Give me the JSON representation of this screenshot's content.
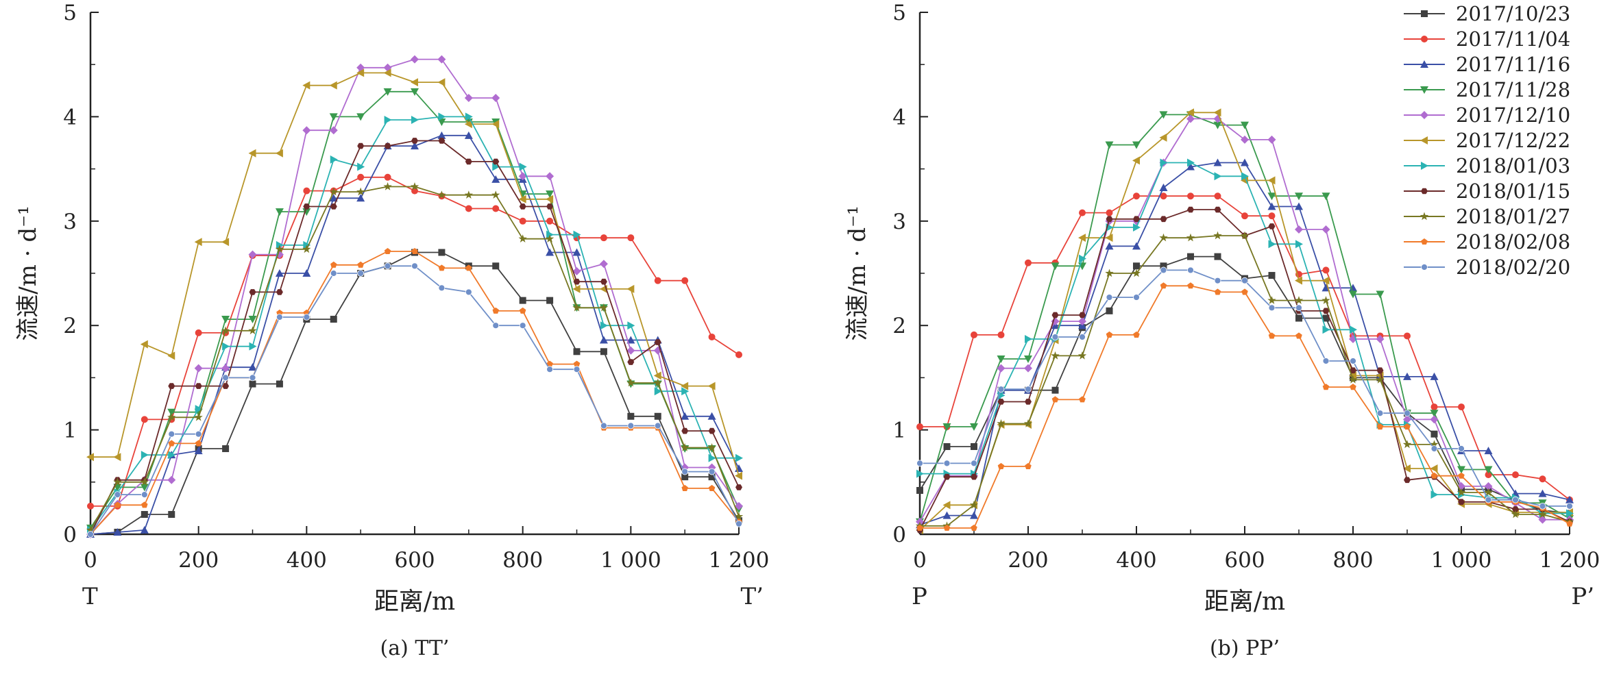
{
  "chart_data": [
    {
      "type": "line",
      "panel_label": "(a) TT’",
      "xlabel": "距离/m",
      "ylabel": "流速/m · d⁻¹",
      "xlim": [
        0,
        1200
      ],
      "ylim": [
        0,
        5
      ],
      "x_ticks": [
        0,
        200,
        400,
        600,
        800,
        1000,
        1200
      ],
      "x_tick_labels": [
        "0",
        "200",
        "400",
        "600",
        "800",
        "1 000",
        "1 200"
      ],
      "y_ticks": [
        0,
        1,
        2,
        3,
        4,
        5
      ],
      "y_tick_labels": [
        "0",
        "1",
        "2",
        "3",
        "4",
        "5"
      ],
      "end_labels": [
        "T",
        "T’"
      ],
      "grid": false,
      "legend": false,
      "x": [
        0,
        50,
        100,
        150,
        200,
        250,
        300,
        350,
        400,
        450,
        500,
        550,
        600,
        650,
        700,
        750,
        800,
        850,
        900,
        950,
        1000,
        1050,
        1100,
        1150,
        1200
      ],
      "series": [
        {
          "name": "2017/10/23",
          "color": "#404040",
          "marker": "square",
          "values": [
            0.0,
            0.02,
            0.19,
            0.19,
            0.82,
            0.82,
            1.44,
            1.44,
            2.06,
            2.06,
            2.5,
            2.57,
            2.7,
            2.7,
            2.57,
            2.57,
            2.24,
            2.24,
            1.75,
            1.75,
            1.13,
            1.13,
            0.55,
            0.55,
            0.13
          ]
        },
        {
          "name": "2017/11/04",
          "color": "#e8433a",
          "marker": "circle",
          "values": [
            0.27,
            0.27,
            1.1,
            1.1,
            1.93,
            1.93,
            2.67,
            2.67,
            3.29,
            3.29,
            3.42,
            3.42,
            3.29,
            3.24,
            3.12,
            3.12,
            3.0,
            3.0,
            2.84,
            2.84,
            2.84,
            2.43,
            2.43,
            1.89,
            1.72
          ]
        },
        {
          "name": "2017/11/16",
          "color": "#3a4fa6",
          "marker": "triangle-up",
          "values": [
            0.0,
            0.02,
            0.04,
            0.76,
            0.8,
            1.6,
            1.6,
            2.5,
            2.5,
            3.22,
            3.22,
            3.72,
            3.72,
            3.82,
            3.82,
            3.4,
            3.4,
            2.7,
            2.7,
            1.86,
            1.86,
            1.86,
            1.13,
            1.13,
            0.63
          ]
        },
        {
          "name": "2017/11/28",
          "color": "#3a9a4e",
          "marker": "triangle-down",
          "values": [
            0.06,
            0.45,
            0.45,
            1.17,
            1.17,
            2.06,
            2.06,
            3.09,
            3.09,
            4.0,
            4.0,
            4.24,
            4.24,
            3.95,
            3.95,
            3.95,
            3.26,
            3.26,
            2.17,
            2.17,
            1.44,
            1.44,
            0.82,
            0.82,
            0.24
          ]
        },
        {
          "name": "2017/12/10",
          "color": "#b06cd0",
          "marker": "diamond",
          "values": [
            0.0,
            0.29,
            0.52,
            0.52,
            1.59,
            1.59,
            2.68,
            2.68,
            3.87,
            3.87,
            4.47,
            4.47,
            4.55,
            4.55,
            4.18,
            4.18,
            3.43,
            3.43,
            2.52,
            2.59,
            1.76,
            1.76,
            0.64,
            0.64,
            0.27
          ]
        },
        {
          "name": "2017/12/22",
          "color": "#b8962a",
          "marker": "triangle-left",
          "values": [
            0.74,
            0.74,
            1.82,
            1.71,
            2.8,
            2.8,
            3.65,
            3.65,
            4.3,
            4.3,
            4.42,
            4.42,
            4.33,
            4.33,
            3.93,
            3.93,
            3.21,
            3.21,
            2.35,
            2.35,
            2.35,
            1.52,
            1.42,
            1.42,
            0.56
          ]
        },
        {
          "name": "2018/01/03",
          "color": "#2bb3b3",
          "marker": "triangle-right",
          "values": [
            0.04,
            0.4,
            0.76,
            0.76,
            1.2,
            1.8,
            1.8,
            2.77,
            2.77,
            3.59,
            3.52,
            3.97,
            3.97,
            4.0,
            4.0,
            3.52,
            3.52,
            2.87,
            2.87,
            2.0,
            2.0,
            1.37,
            1.37,
            0.73,
            0.73
          ]
        },
        {
          "name": "2018/01/15",
          "color": "#6b2a2a",
          "marker": "hexagon",
          "values": [
            0.0,
            0.52,
            0.52,
            1.42,
            1.42,
            1.42,
            2.32,
            2.32,
            3.14,
            3.14,
            3.72,
            3.72,
            3.77,
            3.77,
            3.57,
            3.57,
            3.14,
            3.14,
            2.42,
            2.42,
            1.65,
            1.84,
            0.99,
            0.99,
            0.45
          ]
        },
        {
          "name": "2018/01/27",
          "color": "#777722",
          "marker": "star",
          "values": [
            0.04,
            0.5,
            0.5,
            1.12,
            1.12,
            1.95,
            1.95,
            2.73,
            2.73,
            3.28,
            3.28,
            3.33,
            3.33,
            3.25,
            3.25,
            3.25,
            2.83,
            2.83,
            2.17,
            2.17,
            1.45,
            1.45,
            0.83,
            0.83,
            0.17
          ]
        },
        {
          "name": "2018/02/08",
          "color": "#f07a2a",
          "marker": "pentagon",
          "values": [
            0.0,
            0.28,
            0.28,
            0.87,
            0.87,
            1.5,
            1.5,
            2.12,
            2.12,
            2.58,
            2.58,
            2.71,
            2.71,
            2.55,
            2.55,
            2.14,
            2.14,
            1.63,
            1.63,
            1.02,
            1.02,
            1.02,
            0.44,
            0.44,
            0.12
          ]
        },
        {
          "name": "2018/02/20",
          "color": "#6f8fc8",
          "marker": "circle-small",
          "values": [
            0.0,
            0.38,
            0.38,
            0.96,
            0.96,
            1.5,
            1.5,
            2.08,
            2.08,
            2.5,
            2.5,
            2.57,
            2.57,
            2.36,
            2.32,
            2.0,
            2.0,
            1.58,
            1.58,
            1.04,
            1.04,
            1.04,
            0.6,
            0.6,
            0.1
          ]
        }
      ]
    },
    {
      "type": "line",
      "panel_label": "(b) PP’",
      "xlabel": "距离/m",
      "ylabel": "流速/m · d⁻¹",
      "xlim": [
        0,
        1200
      ],
      "ylim": [
        0,
        5
      ],
      "x_ticks": [
        0,
        200,
        400,
        600,
        800,
        1000,
        1200
      ],
      "x_tick_labels": [
        "0",
        "200",
        "400",
        "600",
        "800",
        "1 000",
        "1 200"
      ],
      "y_ticks": [
        0,
        1,
        2,
        3,
        4,
        5
      ],
      "y_tick_labels": [
        "0",
        "1",
        "2",
        "3",
        "4",
        "5"
      ],
      "end_labels": [
        "P",
        "P’"
      ],
      "grid": false,
      "legend": "top-right",
      "x": [
        0,
        50,
        100,
        150,
        200,
        250,
        300,
        350,
        400,
        450,
        500,
        550,
        600,
        650,
        700,
        750,
        800,
        850,
        900,
        950,
        1000,
        1050,
        1100,
        1150,
        1200
      ],
      "series": [
        {
          "name": "2017/10/23",
          "color": "#404040",
          "marker": "square",
          "values": [
            0.42,
            0.84,
            0.84,
            1.38,
            1.38,
            1.38,
            1.98,
            2.14,
            2.57,
            2.57,
            2.66,
            2.66,
            2.45,
            2.48,
            2.07,
            2.07,
            1.5,
            1.5,
            1.16,
            0.96,
            0.43,
            0.43,
            0.32,
            0.23,
            0.2
          ]
        },
        {
          "name": "2017/11/04",
          "color": "#e8433a",
          "marker": "circle",
          "values": [
            1.03,
            1.03,
            1.91,
            1.91,
            2.6,
            2.6,
            3.08,
            3.08,
            3.24,
            3.24,
            3.24,
            3.24,
            3.05,
            3.05,
            2.49,
            2.53,
            1.9,
            1.9,
            1.9,
            1.22,
            1.22,
            0.57,
            0.57,
            0.53,
            0.33
          ]
        },
        {
          "name": "2017/11/16",
          "color": "#3a4fa6",
          "marker": "triangle-up",
          "values": [
            0.09,
            0.18,
            0.18,
            1.38,
            1.38,
            2.0,
            2.0,
            2.76,
            2.76,
            3.32,
            3.52,
            3.56,
            3.56,
            3.14,
            3.14,
            2.36,
            2.36,
            1.51,
            1.51,
            1.51,
            0.8,
            0.8,
            0.39,
            0.39,
            0.33
          ]
        },
        {
          "name": "2017/11/28",
          "color": "#3a9a4e",
          "marker": "triangle-down",
          "values": [
            0.12,
            1.03,
            1.03,
            1.68,
            1.68,
            2.57,
            2.57,
            3.73,
            3.73,
            4.02,
            4.02,
            3.92,
            3.92,
            3.24,
            3.24,
            3.24,
            2.3,
            2.3,
            1.16,
            1.16,
            0.62,
            0.62,
            0.3,
            0.3,
            0.15
          ]
        },
        {
          "name": "2017/12/10",
          "color": "#b06cd0",
          "marker": "diamond",
          "values": [
            0.12,
            0.56,
            0.56,
            1.59,
            1.59,
            2.04,
            2.04,
            3.0,
            3.0,
            3.56,
            3.98,
            3.98,
            3.78,
            3.78,
            2.92,
            2.92,
            1.87,
            1.87,
            1.1,
            1.1,
            0.46,
            0.46,
            0.3,
            0.14,
            0.14
          ]
        },
        {
          "name": "2017/12/22",
          "color": "#b8962a",
          "marker": "triangle-left",
          "values": [
            0.04,
            0.28,
            0.28,
            1.05,
            1.05,
            1.86,
            2.84,
            2.84,
            3.58,
            3.8,
            4.04,
            4.04,
            3.39,
            3.39,
            2.43,
            2.43,
            1.52,
            1.52,
            0.63,
            0.63,
            0.29,
            0.29,
            0.21,
            0.21,
            0.21
          ]
        },
        {
          "name": "2018/01/03",
          "color": "#2bb3b3",
          "marker": "triangle-right",
          "values": [
            0.58,
            0.58,
            0.58,
            1.33,
            1.87,
            1.87,
            2.64,
            2.94,
            2.94,
            3.56,
            3.56,
            3.43,
            3.43,
            2.78,
            2.78,
            1.96,
            1.96,
            1.05,
            1.05,
            0.38,
            0.38,
            0.35,
            0.35,
            0.2,
            0.2
          ]
        },
        {
          "name": "2018/01/15",
          "color": "#6b2a2a",
          "marker": "hexagon",
          "values": [
            0.04,
            0.55,
            0.55,
            1.27,
            1.27,
            2.1,
            2.1,
            3.02,
            3.02,
            3.02,
            3.11,
            3.11,
            2.86,
            2.95,
            2.14,
            2.14,
            1.57,
            1.57,
            0.52,
            0.55,
            0.31,
            0.31,
            0.24,
            0.24,
            0.12
          ]
        },
        {
          "name": "2018/01/27",
          "color": "#777722",
          "marker": "star",
          "values": [
            0.08,
            0.08,
            0.28,
            1.06,
            1.06,
            1.71,
            1.71,
            2.5,
            2.5,
            2.84,
            2.84,
            2.86,
            2.86,
            2.24,
            2.24,
            2.24,
            1.48,
            1.48,
            0.86,
            0.86,
            0.4,
            0.4,
            0.19,
            0.19,
            0.12
          ]
        },
        {
          "name": "2018/02/08",
          "color": "#f07a2a",
          "marker": "pentagon",
          "values": [
            0.06,
            0.06,
            0.06,
            0.65,
            0.65,
            1.29,
            1.29,
            1.91,
            1.91,
            2.38,
            2.38,
            2.32,
            2.32,
            1.9,
            1.9,
            1.41,
            1.41,
            1.03,
            1.03,
            0.56,
            0.56,
            0.31,
            0.31,
            0.25,
            0.1
          ]
        },
        {
          "name": "2018/02/20",
          "color": "#6f8fc8",
          "marker": "circle-small",
          "values": [
            0.68,
            0.68,
            0.68,
            1.39,
            1.39,
            1.89,
            1.89,
            2.27,
            2.27,
            2.53,
            2.53,
            2.43,
            2.43,
            2.17,
            2.17,
            1.66,
            1.66,
            1.16,
            1.16,
            0.82,
            0.82,
            0.33,
            0.33,
            0.27,
            0.27
          ]
        }
      ]
    }
  ]
}
